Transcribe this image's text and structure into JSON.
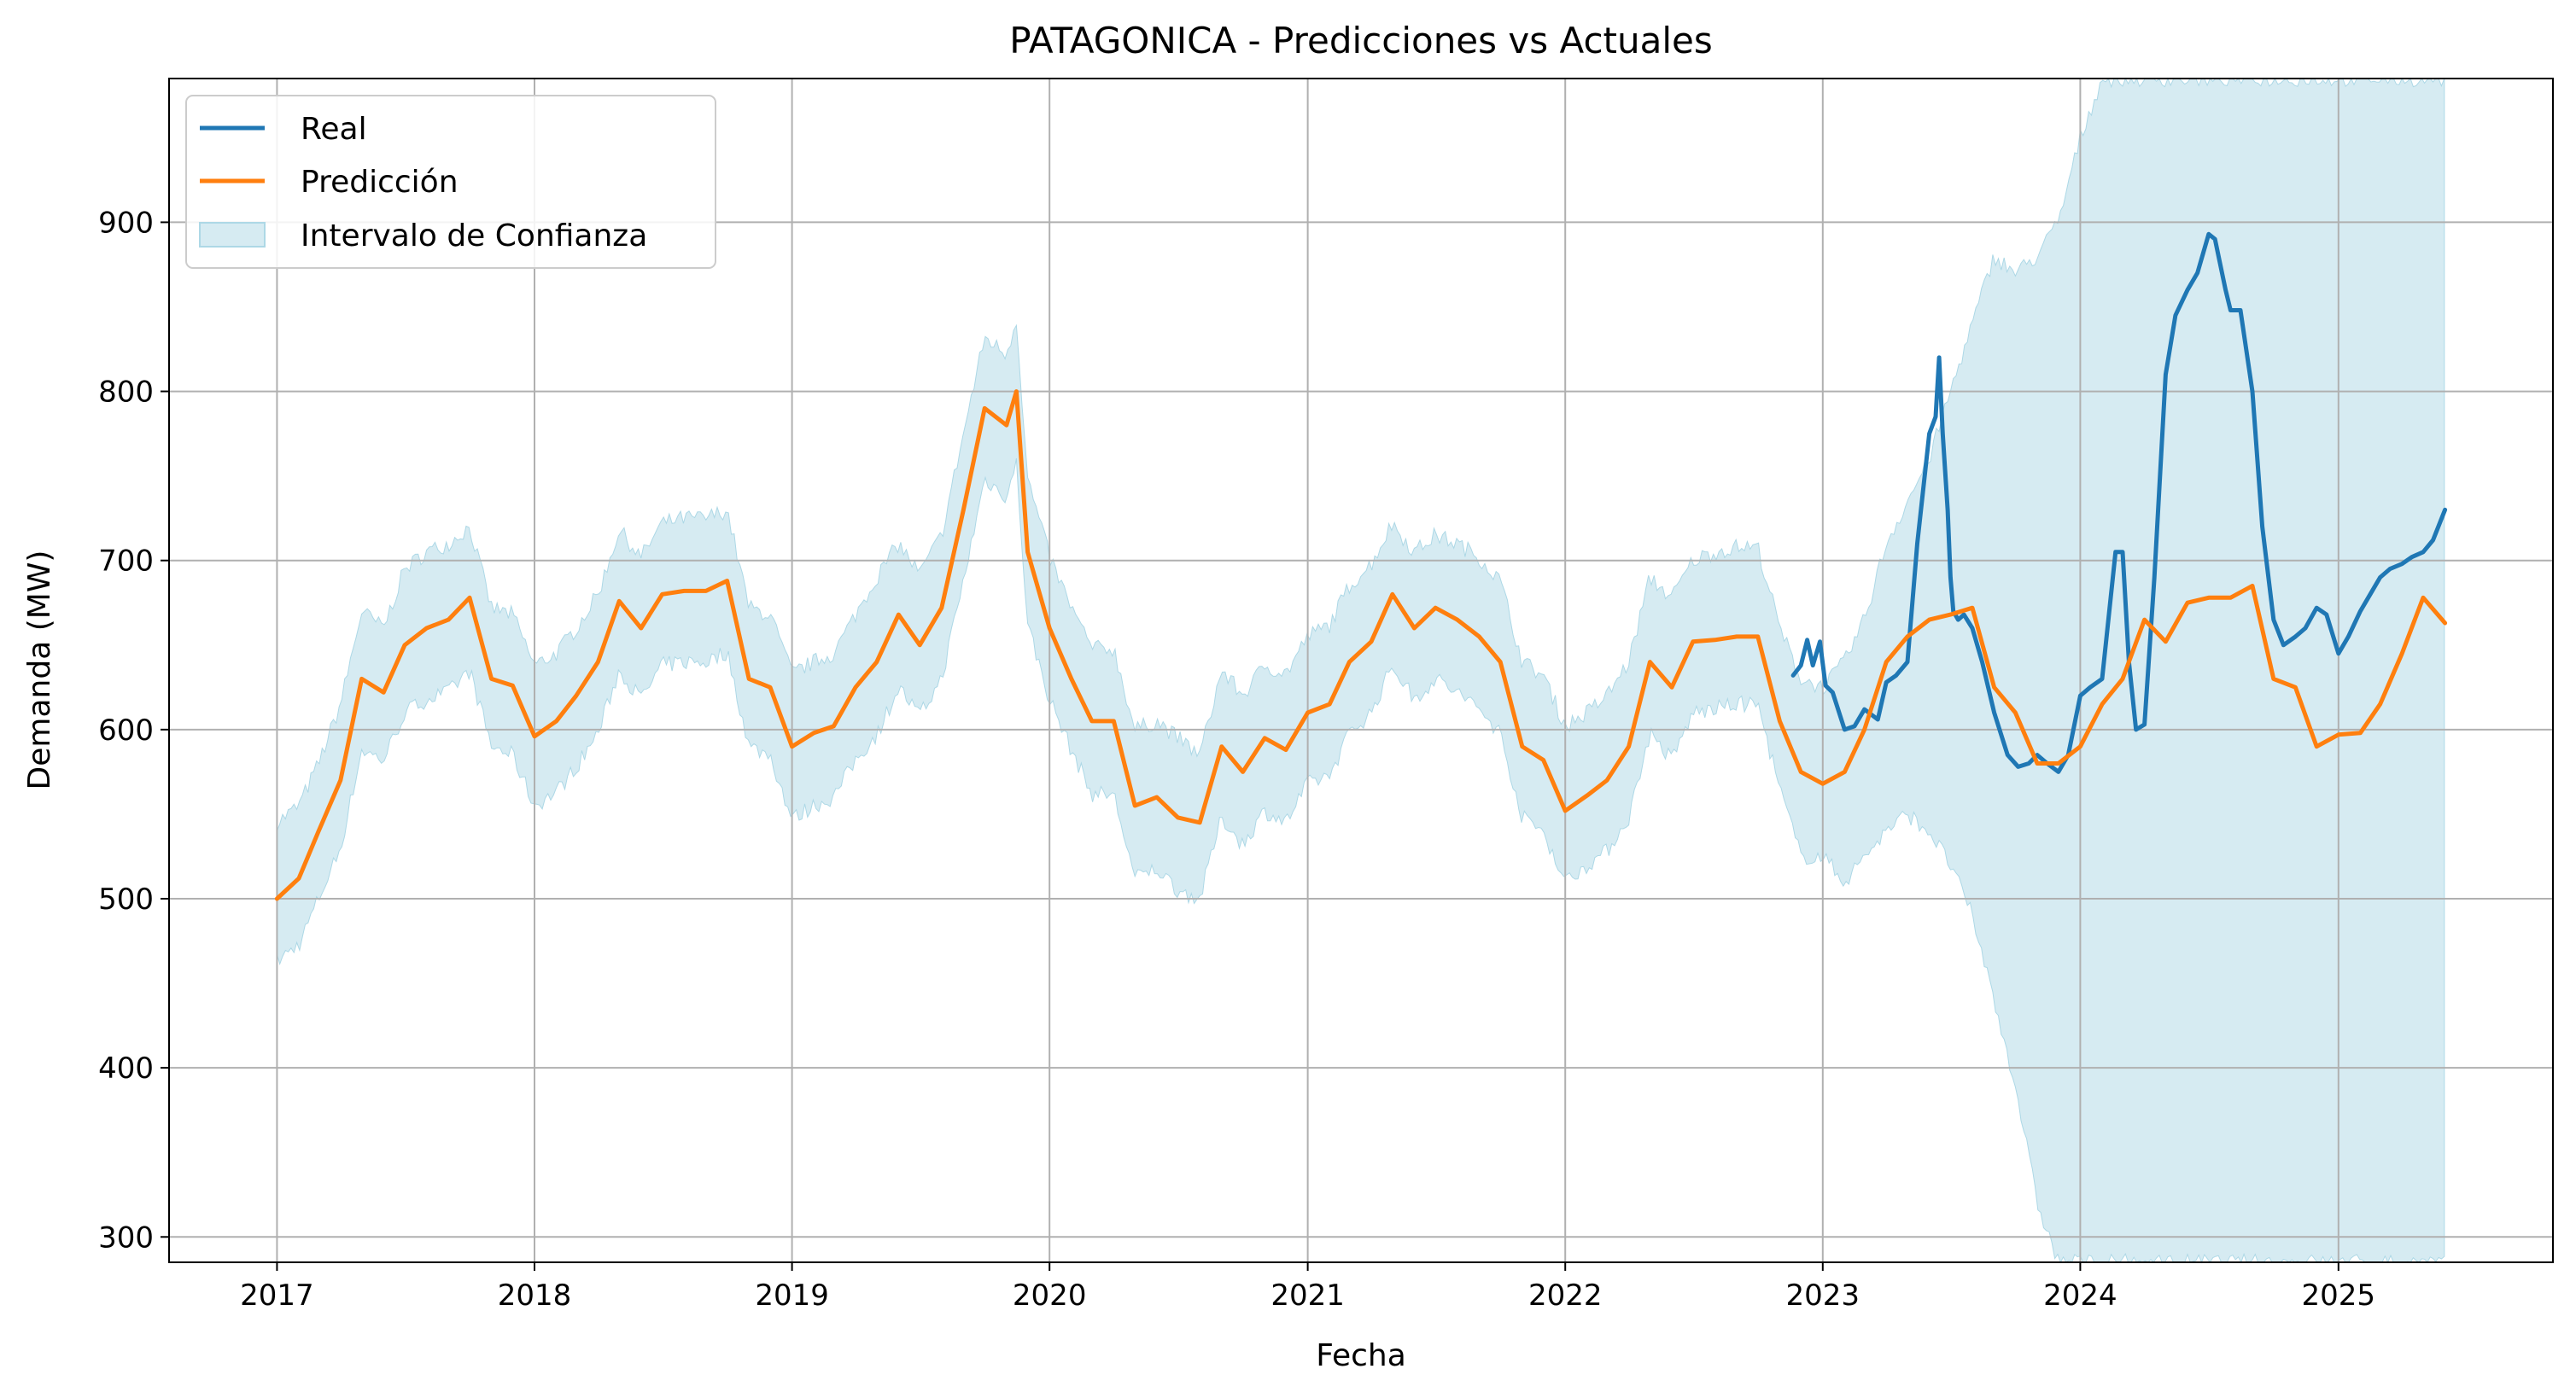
{
  "chart_data": {
    "type": "line",
    "title": "PATAGONICA - Predicciones vs Actuales",
    "xlabel": "Fecha",
    "ylabel": "Demanda (MW)",
    "x_tick_labels": [
      "2017",
      "2018",
      "2019",
      "2020",
      "2021",
      "2022",
      "2023",
      "2024",
      "2025"
    ],
    "y_tick_labels": [
      "300",
      "400",
      "500",
      "600",
      "700",
      "800",
      "900"
    ],
    "xlim": [
      "2016-08-01",
      "2025-11-01"
    ],
    "ylim": [
      285,
      985
    ],
    "grid": true,
    "legend": {
      "position": "top-left",
      "items": [
        {
          "label": "Real",
          "kind": "line",
          "color": "#1f77b4"
        },
        {
          "label": "Predicción",
          "kind": "line",
          "color": "#ff7f0e"
        },
        {
          "label": "Intervalo de Confianza",
          "kind": "band",
          "color": "#add8e6"
        }
      ]
    },
    "series": [
      {
        "name": "Real",
        "color": "#1f77b4",
        "x": [
          "2022-11-20",
          "2022-12-01",
          "2022-12-10",
          "2022-12-18",
          "2022-12-28",
          "2023-01-05",
          "2023-01-15",
          "2023-02-01",
          "2023-02-15",
          "2023-03-01",
          "2023-03-20",
          "2023-04-01",
          "2023-04-15",
          "2023-05-01",
          "2023-05-15",
          "2023-06-01",
          "2023-06-10",
          "2023-06-15",
          "2023-06-20",
          "2023-06-27",
          "2023-07-01",
          "2023-07-05",
          "2023-07-12",
          "2023-07-20",
          "2023-08-01",
          "2023-08-15",
          "2023-09-01",
          "2023-09-20",
          "2023-10-05",
          "2023-10-20",
          "2023-11-01",
          "2023-11-15",
          "2023-12-01",
          "2023-12-15",
          "2024-01-01",
          "2024-01-15",
          "2024-02-01",
          "2024-02-20",
          "2024-03-01",
          "2024-03-10",
          "2024-03-20",
          "2024-04-01",
          "2024-04-15",
          "2024-05-01",
          "2024-05-15",
          "2024-06-01",
          "2024-06-15",
          "2024-07-01",
          "2024-07-10",
          "2024-07-15",
          "2024-07-25",
          "2024-08-01",
          "2024-08-15",
          "2024-09-01",
          "2024-09-15",
          "2024-10-01",
          "2024-10-15",
          "2024-11-01",
          "2024-11-15",
          "2024-12-01",
          "2024-12-15",
          "2025-01-01",
          "2025-01-15",
          "2025-02-01",
          "2025-02-15",
          "2025-03-01",
          "2025-03-15",
          "2025-04-01",
          "2025-04-15",
          "2025-05-01",
          "2025-05-15",
          "2025-06-01"
        ],
        "y": [
          632,
          638,
          653,
          638,
          652,
          626,
          622,
          600,
          602,
          612,
          606,
          628,
          632,
          640,
          710,
          775,
          785,
          820,
          775,
          730,
          690,
          670,
          665,
          668,
          660,
          640,
          610,
          585,
          578,
          580,
          585,
          580,
          575,
          585,
          620,
          625,
          630,
          705,
          705,
          640,
          600,
          603,
          690,
          810,
          845,
          860,
          870,
          893,
          890,
          880,
          860,
          848,
          848,
          800,
          720,
          665,
          650,
          655,
          660,
          672,
          668,
          645,
          655,
          670,
          680,
          690,
          695,
          698,
          702,
          705,
          712,
          730
        ]
      },
      {
        "name": "Predicción",
        "color": "#ff7f0e",
        "x": [
          "2017-01-01",
          "2017-02-01",
          "2017-03-01",
          "2017-04-01",
          "2017-05-01",
          "2017-06-01",
          "2017-07-01",
          "2017-08-01",
          "2017-09-01",
          "2017-10-01",
          "2017-11-01",
          "2017-12-01",
          "2018-01-01",
          "2018-02-01",
          "2018-03-01",
          "2018-04-01",
          "2018-05-01",
          "2018-06-01",
          "2018-07-01",
          "2018-08-01",
          "2018-09-01",
          "2018-10-01",
          "2018-11-01",
          "2018-12-01",
          "2019-01-01",
          "2019-02-01",
          "2019-03-01",
          "2019-04-01",
          "2019-05-01",
          "2019-06-01",
          "2019-07-01",
          "2019-08-01",
          "2019-09-01",
          "2019-10-01",
          "2019-11-01",
          "2019-11-15",
          "2019-12-01",
          "2020-01-01",
          "2020-02-01",
          "2020-03-01",
          "2020-04-01",
          "2020-05-01",
          "2020-06-01",
          "2020-07-01",
          "2020-08-01",
          "2020-09-01",
          "2020-10-01",
          "2020-11-01",
          "2020-12-01",
          "2021-01-01",
          "2021-02-01",
          "2021-03-01",
          "2021-04-01",
          "2021-05-01",
          "2021-06-01",
          "2021-07-01",
          "2021-08-01",
          "2021-09-01",
          "2021-10-01",
          "2021-11-01",
          "2021-12-01",
          "2022-01-01",
          "2022-02-01",
          "2022-03-01",
          "2022-04-01",
          "2022-05-01",
          "2022-06-01",
          "2022-07-01",
          "2022-08-01",
          "2022-09-01",
          "2022-10-01",
          "2022-11-01",
          "2022-12-01",
          "2023-01-01",
          "2023-02-01",
          "2023-03-01",
          "2023-04-01",
          "2023-05-01",
          "2023-06-01",
          "2023-07-01",
          "2023-08-01",
          "2023-09-01",
          "2023-10-01",
          "2023-11-01",
          "2023-12-01",
          "2024-01-01",
          "2024-02-01",
          "2024-03-01",
          "2024-04-01",
          "2024-05-01",
          "2024-06-01",
          "2024-07-01",
          "2024-08-01",
          "2024-09-01",
          "2024-10-01",
          "2024-11-01",
          "2024-12-01",
          "2025-01-01",
          "2025-02-01",
          "2025-03-01",
          "2025-04-01",
          "2025-05-01",
          "2025-06-01"
        ],
        "y": [
          500,
          512,
          540,
          570,
          630,
          622,
          650,
          660,
          665,
          678,
          630,
          626,
          596,
          605,
          620,
          640,
          676,
          660,
          680,
          682,
          682,
          688,
          630,
          625,
          590,
          598,
          602,
          625,
          640,
          668,
          650,
          672,
          730,
          790,
          780,
          800,
          705,
          660,
          630,
          605,
          605,
          555,
          560,
          548,
          545,
          590,
          575,
          595,
          588,
          610,
          615,
          640,
          652,
          680,
          660,
          672,
          665,
          655,
          640,
          590,
          582,
          552,
          561,
          570,
          590,
          640,
          625,
          652,
          653,
          655,
          655,
          605,
          575,
          568,
          575,
          600,
          640,
          655,
          665,
          668,
          672,
          625,
          610,
          580,
          580,
          590,
          615,
          630,
          665,
          652,
          675,
          678,
          678,
          685,
          630,
          625,
          590,
          597,
          598,
          615,
          645,
          678,
          663
        ]
      }
    ],
    "band": {
      "name": "Intervalo de Confianza",
      "color": "#add8e6",
      "x": [
        "2017-01-01",
        "2017-02-01",
        "2017-03-01",
        "2017-04-01",
        "2017-05-01",
        "2017-06-01",
        "2017-07-01",
        "2017-08-01",
        "2017-09-01",
        "2017-10-01",
        "2017-11-01",
        "2017-12-01",
        "2018-01-01",
        "2018-02-01",
        "2018-03-01",
        "2018-04-01",
        "2018-05-01",
        "2018-06-01",
        "2018-07-01",
        "2018-08-01",
        "2018-09-01",
        "2018-10-01",
        "2018-11-01",
        "2018-12-01",
        "2019-01-01",
        "2019-02-01",
        "2019-03-01",
        "2019-04-01",
        "2019-05-01",
        "2019-06-01",
        "2019-07-01",
        "2019-08-01",
        "2019-09-01",
        "2019-10-01",
        "2019-11-01",
        "2019-11-15",
        "2019-12-01",
        "2020-01-01",
        "2020-02-01",
        "2020-03-01",
        "2020-04-01",
        "2020-05-01",
        "2020-06-01",
        "2020-07-01",
        "2020-08-01",
        "2020-09-01",
        "2020-10-01",
        "2020-11-01",
        "2020-12-01",
        "2021-01-01",
        "2021-02-01",
        "2021-03-01",
        "2021-04-01",
        "2021-05-01",
        "2021-06-01",
        "2021-07-01",
        "2021-08-01",
        "2021-09-01",
        "2021-10-01",
        "2021-11-01",
        "2021-12-01",
        "2022-01-01",
        "2022-02-01",
        "2022-03-01",
        "2022-04-01",
        "2022-05-01",
        "2022-06-01",
        "2022-07-01",
        "2022-08-01",
        "2022-09-01",
        "2022-10-01",
        "2022-11-01",
        "2022-12-01",
        "2023-01-01",
        "2023-02-01",
        "2023-03-01",
        "2023-04-01",
        "2023-05-01",
        "2023-06-01",
        "2023-07-01",
        "2023-08-01",
        "2023-09-01",
        "2023-10-01",
        "2023-11-01",
        "2023-12-01",
        "2024-01-01",
        "2024-02-01",
        "2024-03-01",
        "2024-04-01",
        "2024-05-01",
        "2024-06-01",
        "2024-07-01",
        "2024-08-01",
        "2024-09-01",
        "2024-10-01",
        "2024-11-01",
        "2024-12-01",
        "2025-01-01",
        "2025-02-01",
        "2025-03-01",
        "2025-04-01",
        "2025-05-01",
        "2025-06-01"
      ],
      "upper": [
        545,
        555,
        580,
        615,
        670,
        660,
        695,
        705,
        710,
        720,
        672,
        668,
        638,
        645,
        660,
        680,
        718,
        702,
        722,
        725,
        725,
        730,
        672,
        668,
        633,
        640,
        645,
        668,
        690,
        710,
        692,
        715,
        775,
        832,
        822,
        843,
        748,
        702,
        672,
        648,
        648,
        600,
        605,
        595,
        585,
        635,
        620,
        638,
        633,
        655,
        662,
        685,
        698,
        722,
        705,
        715,
        710,
        702,
        688,
        640,
        632,
        602,
        610,
        620,
        640,
        690,
        678,
        700,
        705,
        708,
        708,
        660,
        630,
        625,
        640,
        665,
        710,
        735,
        760,
        800,
        840,
        880,
        870,
        880,
        900,
        950,
        985,
        985,
        985,
        985,
        985,
        985,
        985,
        985,
        985,
        985,
        985,
        985,
        985,
        985,
        985,
        985,
        985
      ],
      "lower": [
        463,
        473,
        500,
        530,
        588,
        582,
        610,
        618,
        622,
        635,
        590,
        585,
        555,
        563,
        578,
        598,
        635,
        618,
        638,
        640,
        640,
        646,
        590,
        585,
        547,
        555,
        560,
        582,
        597,
        625,
        608,
        630,
        688,
        748,
        738,
        757,
        662,
        618,
        588,
        562,
        562,
        512,
        518,
        505,
        500,
        548,
        532,
        552,
        545,
        568,
        573,
        598,
        610,
        638,
        618,
        630,
        622,
        612,
        598,
        548,
        540,
        510,
        520,
        528,
        548,
        598,
        582,
        610,
        612,
        615,
        615,
        565,
        525,
        525,
        510,
        525,
        540,
        550,
        540,
        520,
        490,
        440,
        390,
        320,
        285,
        285,
        285,
        285,
        285,
        285,
        285,
        285,
        285,
        285,
        285,
        285,
        285,
        285,
        285,
        285,
        285,
        285,
        285
      ]
    }
  }
}
